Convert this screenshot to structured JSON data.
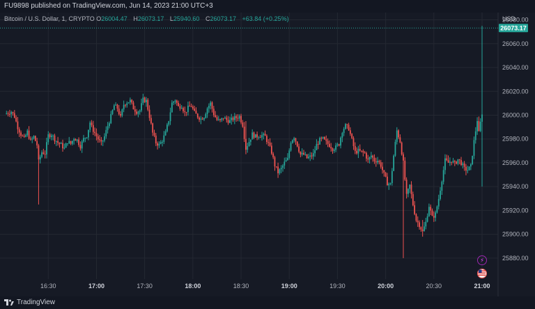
{
  "header": {
    "published_text": "FU9898 published on TradingView.com,  Jun 14, 2023 21:00 UTC+3"
  },
  "legend": {
    "symbol": "Bitcoin / U.S. Dollar, 1, CRYPTO",
    "open_label": "O",
    "open": "26004.47",
    "high_label": "H",
    "high": "26073.17",
    "low_label": "L",
    "low": "25940.60",
    "close_label": "C",
    "close": "26073.17",
    "change": "+63.84 (+0.25%)"
  },
  "axis": {
    "currency": "USD"
  },
  "footer": {
    "brand": "TradingView"
  },
  "colors": {
    "up": "#26a69a",
    "down": "#ef5350",
    "background": "#161a25",
    "grid": "#242832"
  },
  "icons": [
    "lightning-event-icon",
    "us-flag-event-icon"
  ],
  "chart_data": {
    "type": "candlestick",
    "ylim": [
      25870,
      26085
    ],
    "y_ticks": [
      "26080.00",
      "26060.00",
      "26040.00",
      "26020.00",
      "26000.00",
      "25980.00",
      "25960.00",
      "25940.00",
      "25920.00",
      "25900.00",
      "25880.00"
    ],
    "x_ticks": [
      "16:30",
      "17:00",
      "17:30",
      "18:00",
      "18:30",
      "19:00",
      "19:30",
      "20:00",
      "20:30",
      "21:00"
    ],
    "bold_ticks": [
      "17:00",
      "18:00",
      "19:00",
      "20:00",
      "21:00"
    ],
    "last_price": "26073.17",
    "start_time": "16:03",
    "end_time": "21:00",
    "close_path": [
      [
        0,
        26001
      ],
      [
        4,
        26003
      ],
      [
        6,
        25999
      ],
      [
        8,
        25990
      ],
      [
        10,
        25984
      ],
      [
        12,
        25980
      ],
      [
        14,
        25986
      ],
      [
        16,
        25978
      ],
      [
        18,
        25982
      ],
      [
        20,
        25975
      ],
      [
        21,
        25961
      ],
      [
        23,
        25969
      ],
      [
        25,
        25968
      ],
      [
        27,
        25983
      ],
      [
        29,
        25984
      ],
      [
        31,
        25980
      ],
      [
        33,
        25977
      ],
      [
        35,
        25975
      ],
      [
        37,
        25972
      ],
      [
        39,
        25978
      ],
      [
        41,
        25976
      ],
      [
        43,
        25981
      ],
      [
        45,
        25979
      ],
      [
        47,
        25974
      ],
      [
        49,
        25980
      ],
      [
        51,
        25983
      ],
      [
        53,
        25994
      ],
      [
        54,
        25990
      ],
      [
        56,
        25985
      ],
      [
        58,
        25980
      ],
      [
        60,
        25976
      ],
      [
        62,
        25982
      ],
      [
        64,
        25991
      ],
      [
        66,
        25999
      ],
      [
        68,
        26008
      ],
      [
        70,
        26006
      ],
      [
        72,
        25998
      ],
      [
        74,
        26009
      ],
      [
        76,
        26011
      ],
      [
        78,
        26012
      ],
      [
        80,
        26006
      ],
      [
        82,
        26003
      ],
      [
        84,
        26004
      ],
      [
        86,
        26013
      ],
      [
        88,
        26012
      ],
      [
        90,
        25999
      ],
      [
        92,
        25985
      ],
      [
        94,
        25977
      ],
      [
        96,
        25975
      ],
      [
        98,
        25979
      ],
      [
        100,
        25985
      ],
      [
        102,
        25996
      ],
      [
        104,
        26010
      ],
      [
        106,
        26013
      ],
      [
        108,
        26007
      ],
      [
        110,
        26008
      ],
      [
        112,
        26002
      ],
      [
        114,
        26006
      ],
      [
        116,
        26008
      ],
      [
        118,
        26002
      ],
      [
        120,
        25999
      ],
      [
        122,
        25997
      ],
      [
        124,
        25999
      ],
      [
        126,
        26006
      ],
      [
        128,
        26010
      ],
      [
        130,
        26001
      ],
      [
        132,
        25996
      ],
      [
        134,
        25995
      ],
      [
        136,
        25998
      ],
      [
        138,
        25996
      ],
      [
        140,
        25995
      ],
      [
        142,
        25997
      ],
      [
        144,
        25998
      ],
      [
        146,
        25999
      ],
      [
        148,
        25992
      ],
      [
        150,
        25972
      ],
      [
        152,
        25978
      ],
      [
        154,
        25984
      ],
      [
        156,
        25982
      ],
      [
        158,
        25983
      ],
      [
        160,
        25983
      ],
      [
        162,
        25982
      ],
      [
        164,
        25976
      ],
      [
        166,
        25969
      ],
      [
        168,
        25958
      ],
      [
        170,
        25952
      ],
      [
        172,
        25955
      ],
      [
        174,
        25960
      ],
      [
        176,
        25963
      ],
      [
        178,
        25978
      ],
      [
        180,
        25982
      ],
      [
        182,
        25975
      ],
      [
        184,
        25967
      ],
      [
        186,
        25967
      ],
      [
        188,
        25964
      ],
      [
        190,
        25965
      ],
      [
        192,
        25967
      ],
      [
        194,
        25975
      ],
      [
        196,
        25979
      ],
      [
        198,
        25980
      ],
      [
        200,
        25977
      ],
      [
        202,
        25975
      ],
      [
        204,
        25972
      ],
      [
        206,
        25973
      ],
      [
        208,
        25976
      ],
      [
        210,
        25987
      ],
      [
        212,
        25991
      ],
      [
        214,
        25989
      ],
      [
        216,
        25979
      ],
      [
        218,
        25969
      ],
      [
        220,
        25970
      ],
      [
        222,
        25969
      ],
      [
        224,
        25968
      ],
      [
        226,
        25962
      ],
      [
        228,
        25966
      ],
      [
        230,
        25962
      ],
      [
        232,
        25962
      ],
      [
        234,
        25958
      ],
      [
        236,
        25950
      ],
      [
        238,
        25943
      ],
      [
        240,
        25942
      ],
      [
        242,
        25966
      ],
      [
        244,
        25987
      ],
      [
        246,
        25978
      ],
      [
        248,
        25960
      ],
      [
        250,
        25932
      ],
      [
        252,
        25941
      ],
      [
        254,
        25925
      ],
      [
        256,
        25912
      ],
      [
        258,
        25908
      ],
      [
        260,
        25902
      ],
      [
        262,
        25910
      ],
      [
        264,
        25924
      ],
      [
        266,
        25914
      ],
      [
        268,
        25917
      ],
      [
        270,
        25930
      ],
      [
        272,
        25946
      ],
      [
        274,
        25962
      ],
      [
        276,
        25960
      ],
      [
        278,
        25962
      ],
      [
        280,
        25959
      ],
      [
        282,
        25963
      ],
      [
        284,
        25960
      ],
      [
        286,
        25955
      ],
      [
        288,
        25954
      ],
      [
        290,
        25957
      ],
      [
        292,
        25978
      ],
      [
        294,
        25996
      ],
      [
        295,
        25985
      ],
      [
        297,
        26002
      ],
      [
        297.5,
        26073
      ]
    ]
  }
}
